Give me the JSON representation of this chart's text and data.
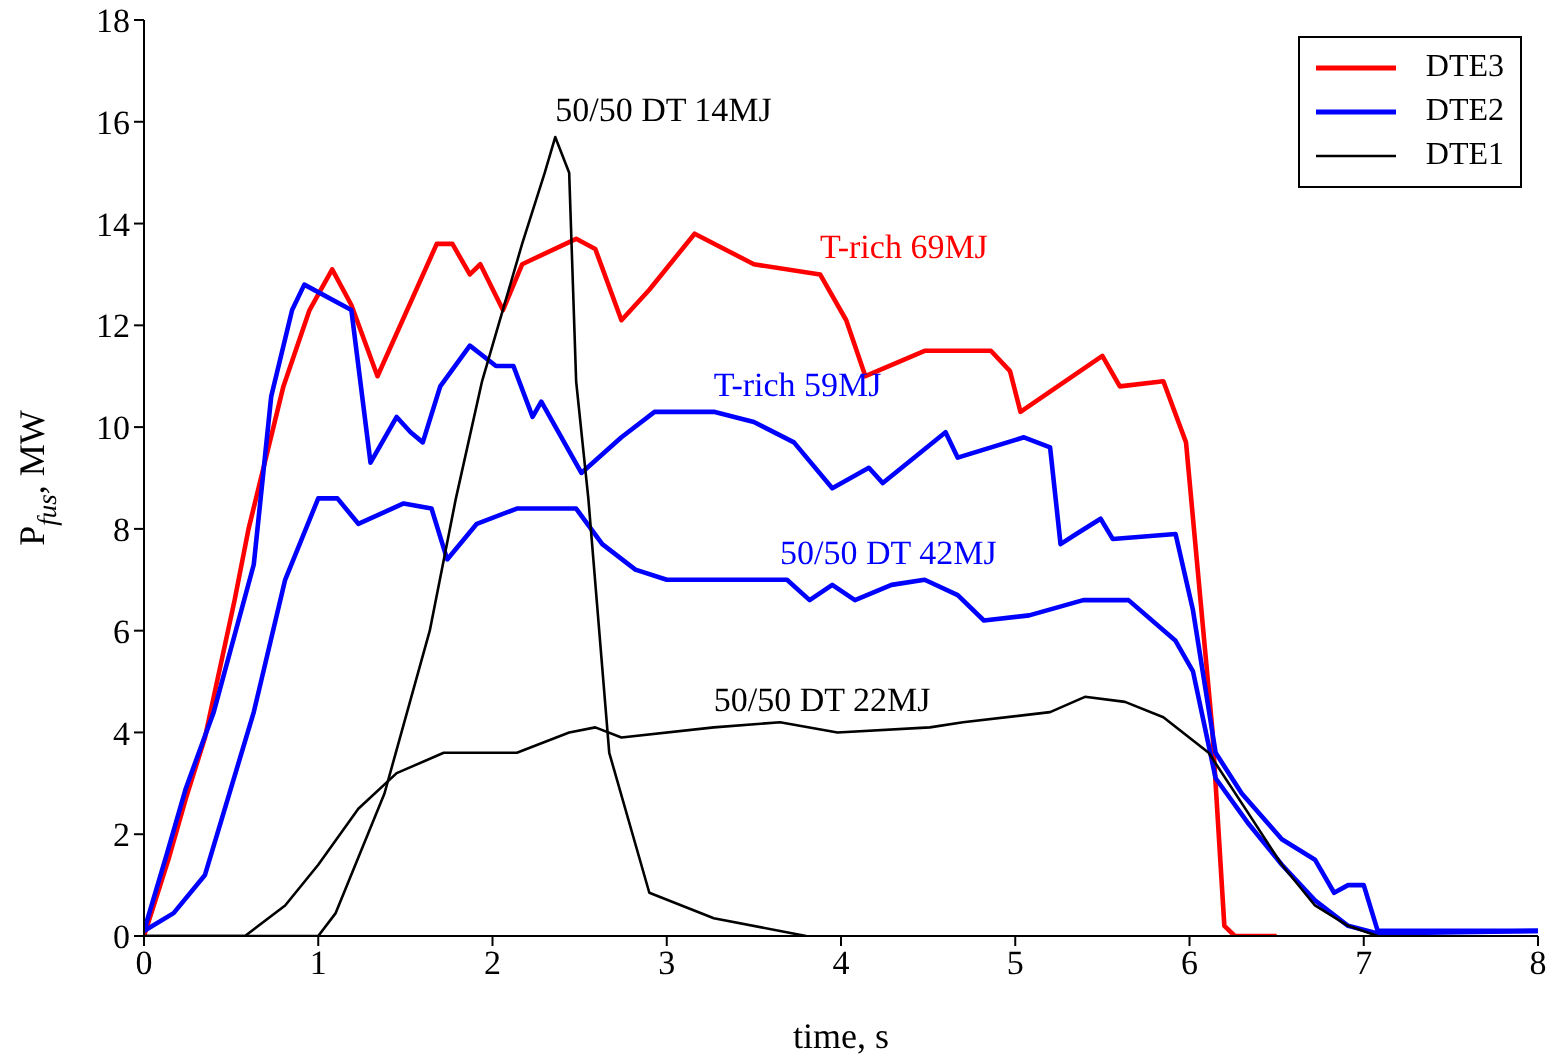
{
  "chart_data": {
    "type": "line",
    "xlabel": "time, s",
    "ylabel": "P$_{fus}$, MW",
    "xlim": [
      0,
      8
    ],
    "xticks": [
      0,
      1,
      2,
      3,
      4,
      5,
      6,
      7,
      8
    ],
    "ylim": [
      0,
      18
    ],
    "yticks": [
      0,
      2,
      4,
      6,
      8,
      10,
      12,
      14,
      16,
      18
    ],
    "grid": false,
    "legend": "top right",
    "marker": "none",
    "line_style": "solid",
    "series": [
      {
        "name": "DTE3",
        "color": "#ff0000",
        "x": [
          0,
          0.14,
          0.24,
          0.35,
          0.52,
          0.6,
          0.8,
          0.95,
          1.08,
          1.19,
          1.34,
          1.68,
          1.77,
          1.87,
          1.93,
          2.06,
          2.17,
          2.48,
          2.59,
          2.74,
          2.9,
          3.16,
          3.5,
          3.88,
          4.03,
          4.14,
          4.48,
          4.86,
          4.97,
          5.03,
          5.5,
          5.6,
          5.85,
          5.98,
          6.13,
          6.2,
          6.26,
          6.5
        ],
        "values": [
          0,
          1.5,
          2.7,
          3.9,
          6.6,
          8.0,
          10.8,
          12.3,
          13.1,
          12.4,
          11.0,
          13.6,
          13.6,
          13.0,
          13.2,
          12.3,
          13.2,
          13.7,
          13.5,
          12.1,
          12.7,
          13.8,
          13.2,
          13.0,
          12.1,
          11.0,
          11.5,
          11.5,
          11.1,
          10.3,
          11.4,
          10.8,
          10.9,
          9.7,
          4.1,
          0.2,
          0,
          0
        ]
      },
      {
        "name": "DTE2",
        "color": "#0000ff",
        "x": [
          0,
          0.13,
          0.24,
          0.4,
          0.63,
          0.73,
          0.85,
          0.92,
          1.19,
          1.3,
          1.45,
          1.53,
          1.6,
          1.7,
          1.87,
          2.02,
          2.12,
          2.23,
          2.28,
          2.51,
          2.74,
          2.93,
          3.27,
          3.5,
          3.73,
          3.95,
          4.16,
          4.24,
          4.6,
          4.67,
          5.05,
          5.2,
          5.26,
          5.35,
          5.49,
          5.56,
          5.92,
          6.02,
          6.15,
          6.3,
          6.53,
          6.72,
          6.83,
          6.91,
          7.0,
          7.08,
          8
        ],
        "values": [
          0.1,
          1.6,
          2.9,
          4.4,
          7.3,
          10.6,
          12.3,
          12.8,
          12.3,
          9.3,
          10.2,
          9.9,
          9.7,
          10.8,
          11.6,
          11.2,
          11.2,
          10.2,
          10.5,
          9.1,
          9.8,
          10.3,
          10.3,
          10.1,
          9.7,
          8.8,
          9.2,
          8.9,
          9.9,
          9.4,
          9.8,
          9.6,
          7.7,
          7.9,
          8.2,
          7.8,
          7.9,
          6.4,
          3.6,
          2.8,
          1.9,
          1.5,
          0.85,
          1.0,
          1.0,
          0.1,
          0.1
        ]
      },
      {
        "color": "#0000ff",
        "x": [
          0,
          0.17,
          0.35,
          0.63,
          0.81,
          1.0,
          1.11,
          1.23,
          1.49,
          1.65,
          1.74,
          1.91,
          2.14,
          2.48,
          2.63,
          2.82,
          3.0,
          3.5,
          3.69,
          3.82,
          3.95,
          4.08,
          4.29,
          4.48,
          4.67,
          4.82,
          5.08,
          5.39,
          5.65,
          5.92,
          6.02,
          6.15,
          6.34,
          6.53,
          6.72,
          6.91,
          7.08,
          8
        ],
        "values": [
          0.1,
          0.45,
          1.2,
          4.4,
          7.0,
          8.6,
          8.6,
          8.1,
          8.5,
          8.4,
          7.4,
          8.1,
          8.4,
          8.4,
          7.7,
          7.2,
          7.0,
          7.0,
          7.0,
          6.6,
          6.9,
          6.6,
          6.9,
          7.0,
          6.7,
          6.2,
          6.3,
          6.6,
          6.6,
          5.8,
          5.2,
          3.1,
          2.2,
          1.4,
          0.7,
          0.2,
          0.05,
          0.1
        ]
      },
      {
        "name": "DTE1",
        "color": "#000000",
        "x": [
          0,
          1.0,
          1.1,
          1.38,
          1.64,
          1.79,
          1.94,
          2.17,
          2.3,
          2.36,
          2.44,
          2.48,
          2.55,
          2.67,
          2.9,
          3.27,
          3.8
        ],
        "values": [
          0,
          0,
          0.45,
          2.8,
          6.0,
          8.6,
          10.9,
          13.6,
          15.0,
          15.7,
          15.0,
          10.9,
          8.6,
          3.6,
          0.85,
          0.35,
          0
        ]
      },
      {
        "color": "#000000",
        "x": [
          0,
          0.58,
          0.81,
          1.0,
          1.23,
          1.45,
          1.72,
          2.14,
          2.44,
          2.59,
          2.74,
          3.27,
          3.65,
          3.98,
          4.51,
          4.7,
          5.2,
          5.4,
          5.63,
          5.85,
          6.11,
          6.34,
          6.53,
          6.72,
          6.91,
          7.08
        ],
        "values": [
          0,
          0,
          0.6,
          1.4,
          2.5,
          3.2,
          3.6,
          3.6,
          4.0,
          4.1,
          3.9,
          4.1,
          4.2,
          4.0,
          4.1,
          4.2,
          4.4,
          4.7,
          4.6,
          4.3,
          3.6,
          2.4,
          1.4,
          0.6,
          0.2,
          0
        ]
      }
    ],
    "annotations": [
      {
        "text": "50/50 DT 14MJ",
        "x": 2.36,
        "y": 15.7
      },
      {
        "text": "T-rich 69MJ",
        "x": 3.88,
        "y": 13.0
      },
      {
        "text": "T-rich 59MJ",
        "x": 3.27,
        "y": 10.3
      },
      {
        "text": "50/50 DT 42MJ",
        "x": 3.65,
        "y": 7.0
      },
      {
        "text": "50/50 DT 22MJ",
        "x": 3.27,
        "y": 4.1
      }
    ]
  }
}
